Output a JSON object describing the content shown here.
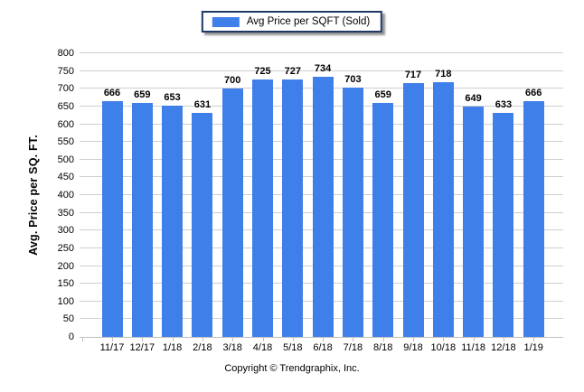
{
  "legend": {
    "label": "Avg Price per SQFT (Sold)",
    "swatch_color": "#3F7FEA"
  },
  "footer": {
    "text": "Copyright © Trendgraphix, Inc."
  },
  "colors": {
    "bar": "#3F7FEA",
    "gridline": "#CFCFCF",
    "axis": "#BFBFBF",
    "legend_border": "#1F3864",
    "text": "#000000"
  },
  "chart_data": {
    "type": "bar",
    "title": "Avg Price per SQFT (Sold)",
    "categories": [
      "11/17",
      "12/17",
      "1/18",
      "2/18",
      "3/18",
      "4/18",
      "5/18",
      "6/18",
      "7/18",
      "8/18",
      "9/18",
      "10/18",
      "11/18",
      "12/18",
      "1/19"
    ],
    "values": [
      666,
      659,
      653,
      631,
      700,
      725,
      727,
      734,
      703,
      659,
      717,
      718,
      649,
      633,
      666
    ],
    "xlabel": "",
    "ylabel": "Avg. Price per SQ. FT.",
    "ylim": [
      0,
      800
    ],
    "ytick_step": 50,
    "grid": true,
    "legend_position": "top-center",
    "value_labels": true
  }
}
